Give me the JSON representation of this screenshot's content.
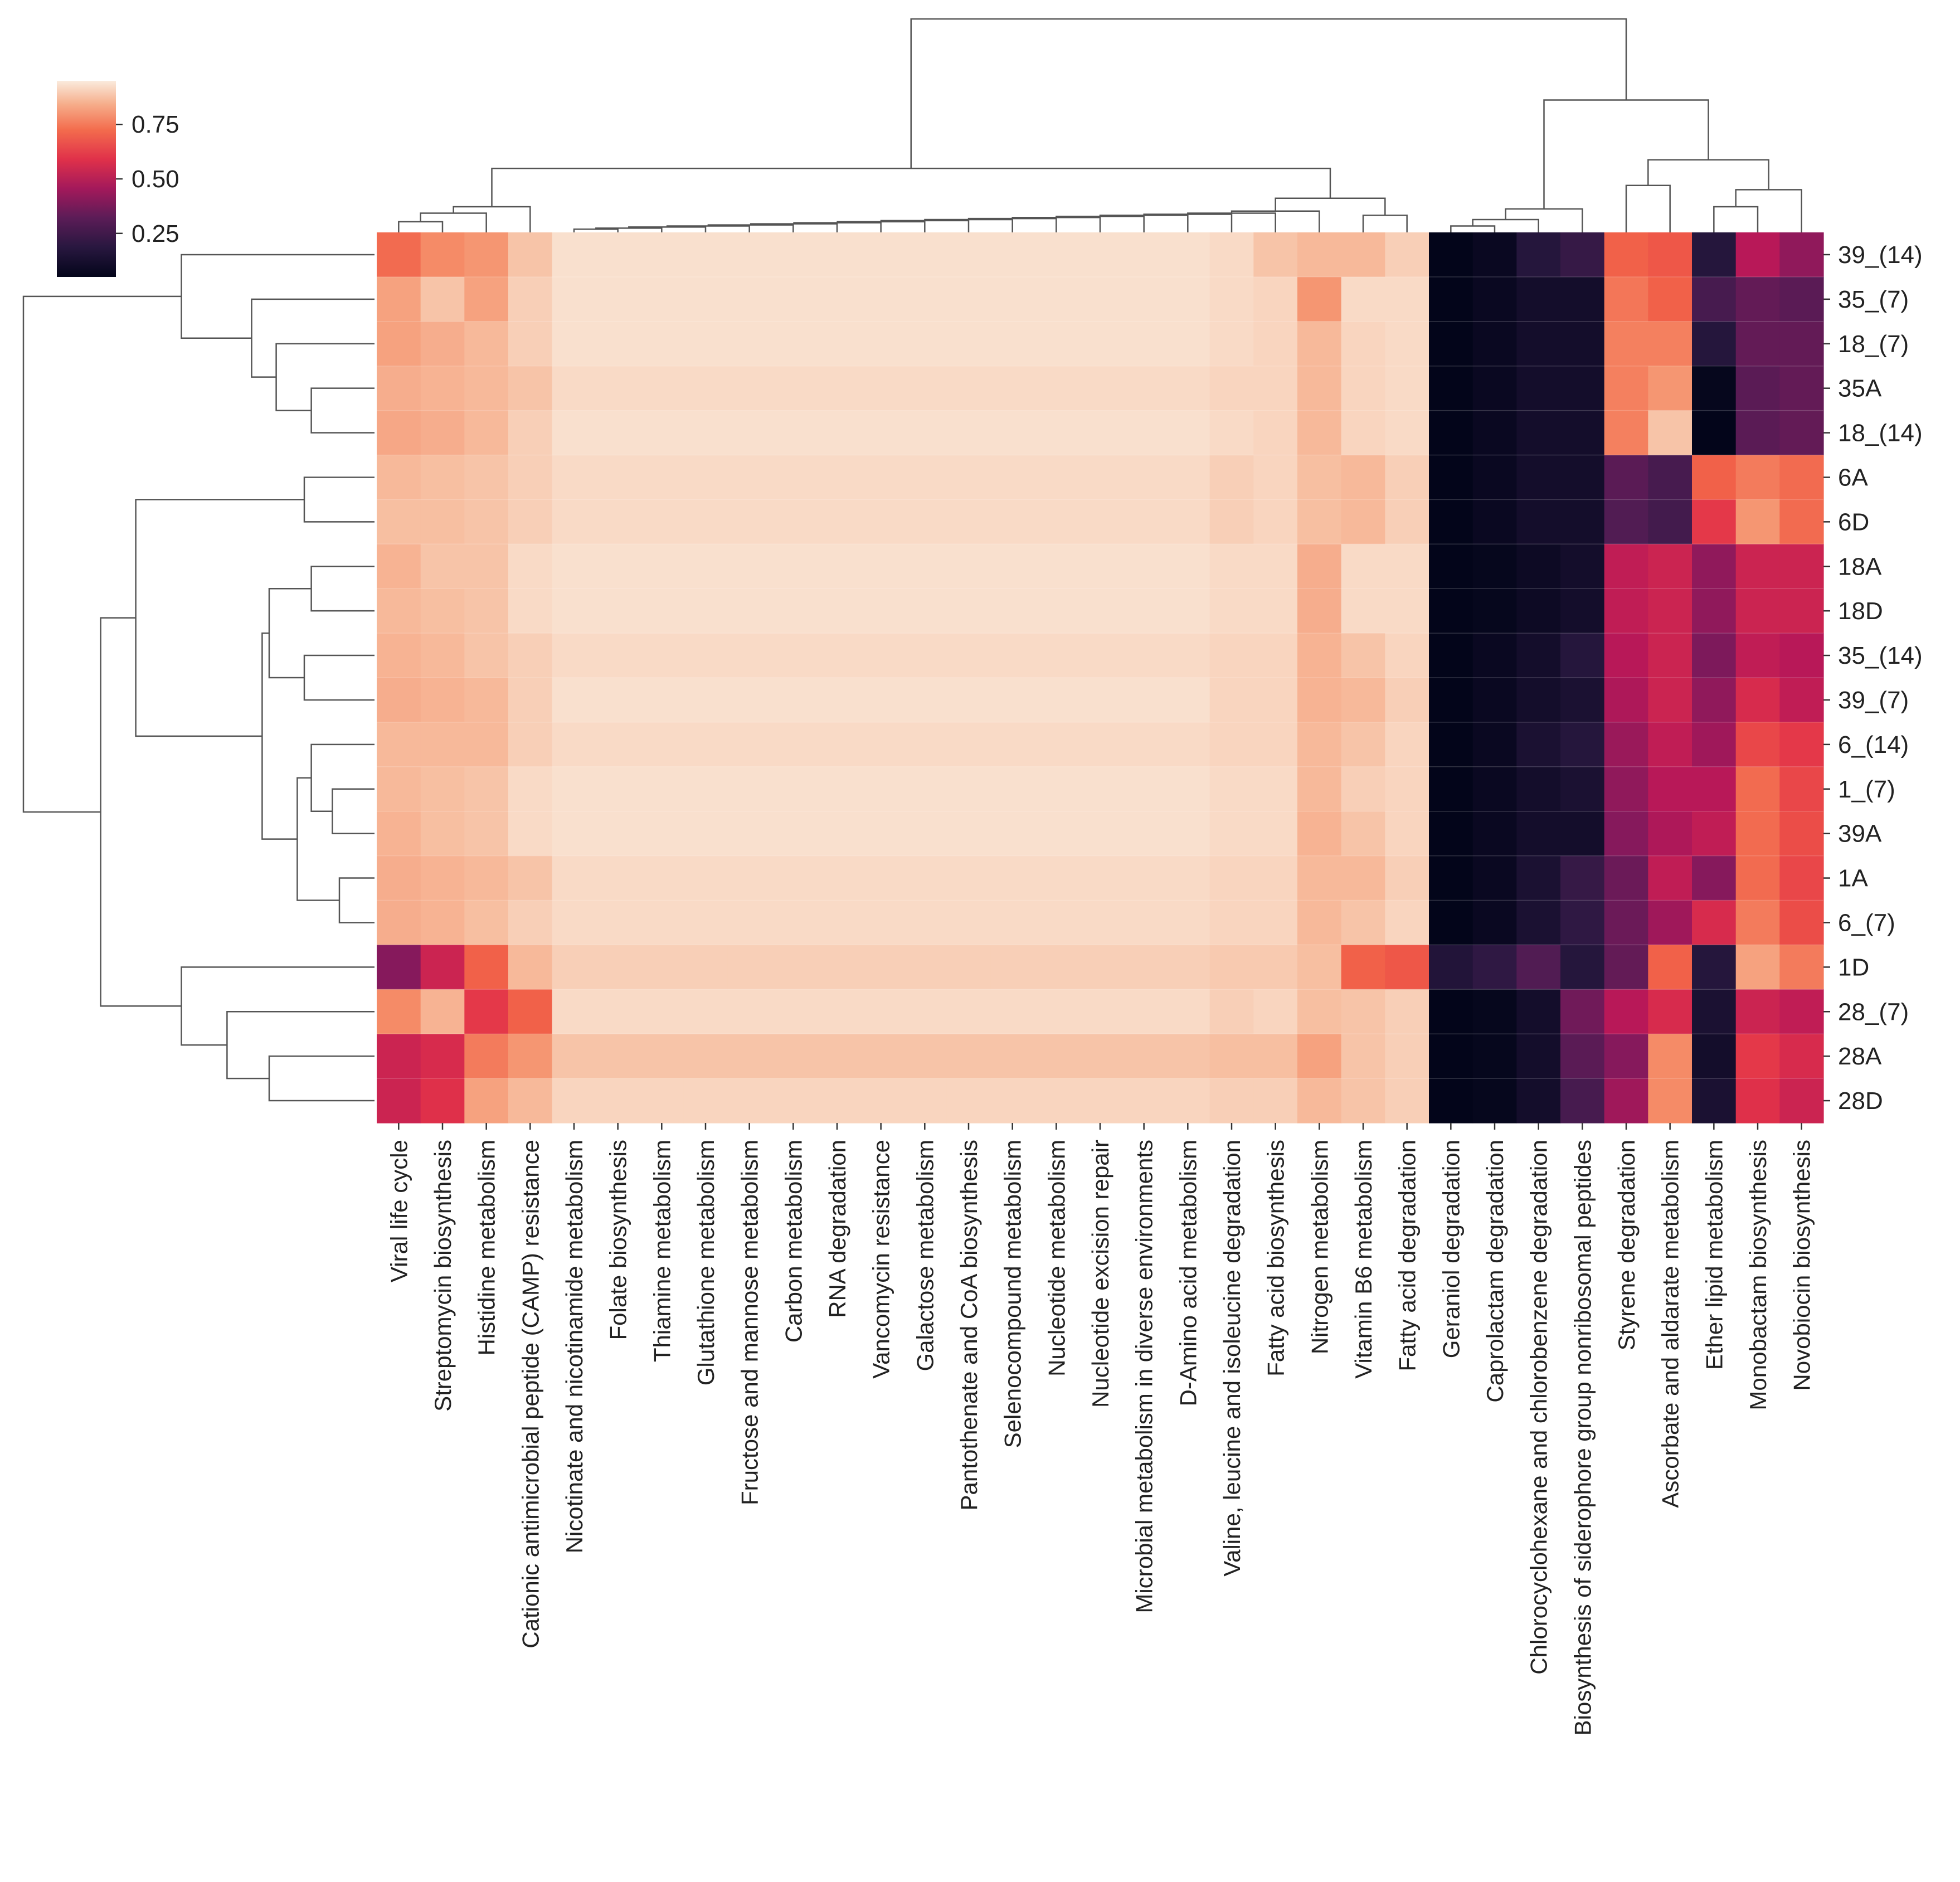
{
  "chart_data": {
    "type": "heatmap",
    "title": "",
    "xlabel": "",
    "ylabel": "",
    "colormap": "rocket",
    "colorbar": {
      "range": [
        0.05,
        0.95
      ],
      "ticks": [
        0.25,
        0.5,
        0.75
      ],
      "tick_labels": [
        "0.25",
        "0.50",
        "0.75"
      ]
    },
    "rows": [
      "39_(14)",
      "35_(7)",
      "18_(7)",
      "35A",
      "18_(14)",
      "6A",
      "6D",
      "18A",
      "18D",
      "35_(14)",
      "39_(7)",
      "6_(14)",
      "1_(7)",
      "39A",
      "1A",
      "6_(7)",
      "1D",
      "28_(7)",
      "28A",
      "28D"
    ],
    "column_groups": [
      {
        "name": "Viral life cycle",
        "labeled": true,
        "values": [
          0.72,
          0.82,
          0.82,
          0.84,
          0.83,
          0.86,
          0.87,
          0.85,
          0.86,
          0.85,
          0.84,
          0.86,
          0.86,
          0.85,
          0.84,
          0.84,
          0.4,
          0.78,
          0.55,
          0.55
        ]
      },
      {
        "name": "Streptomycin biosynthesis",
        "labeled": true,
        "values": [
          0.78,
          0.88,
          0.84,
          0.85,
          0.84,
          0.87,
          0.87,
          0.88,
          0.87,
          0.86,
          0.85,
          0.86,
          0.87,
          0.87,
          0.85,
          0.85,
          0.55,
          0.85,
          0.58,
          0.6
        ]
      },
      {
        "name": "Histidine metabolism",
        "labeled": true,
        "values": [
          0.8,
          0.82,
          0.86,
          0.86,
          0.86,
          0.88,
          0.88,
          0.88,
          0.88,
          0.88,
          0.86,
          0.86,
          0.88,
          0.88,
          0.86,
          0.87,
          0.7,
          0.62,
          0.75,
          0.82
        ]
      },
      {
        "name": "Cationic antimicrobial peptide (CAMP) resistance",
        "labeled": true,
        "values": [
          0.88,
          0.9,
          0.9,
          0.88,
          0.9,
          0.9,
          0.9,
          0.92,
          0.92,
          0.9,
          0.9,
          0.9,
          0.92,
          0.92,
          0.88,
          0.9,
          0.86,
          0.7,
          0.8,
          0.86
        ]
      },
      {
        "name": "Nicotinate and nicotinamide metabolism",
        "labeled": true,
        "values": [
          0.93,
          0.93,
          0.93,
          0.92,
          0.93,
          0.92,
          0.92,
          0.93,
          0.93,
          0.92,
          0.93,
          0.92,
          0.93,
          0.93,
          0.92,
          0.92,
          0.9,
          0.92,
          0.88,
          0.91
        ]
      },
      {
        "name": "Folate biosynthesis",
        "labeled": true,
        "values": [
          0.93,
          0.93,
          0.93,
          0.92,
          0.93,
          0.92,
          0.92,
          0.93,
          0.93,
          0.92,
          0.93,
          0.92,
          0.93,
          0.93,
          0.92,
          0.92,
          0.9,
          0.92,
          0.88,
          0.91
        ]
      },
      {
        "name": "Thiamine metabolism",
        "labeled": true,
        "values": [
          0.93,
          0.93,
          0.93,
          0.92,
          0.93,
          0.92,
          0.92,
          0.93,
          0.93,
          0.92,
          0.93,
          0.92,
          0.93,
          0.93,
          0.92,
          0.92,
          0.9,
          0.92,
          0.88,
          0.91
        ]
      },
      {
        "name": "Glutathione metabolism",
        "labeled": true,
        "values": [
          0.93,
          0.93,
          0.93,
          0.92,
          0.93,
          0.92,
          0.92,
          0.93,
          0.93,
          0.92,
          0.93,
          0.92,
          0.93,
          0.93,
          0.92,
          0.92,
          0.9,
          0.92,
          0.88,
          0.91
        ]
      },
      {
        "name": "Fructose and mannose metabolism",
        "labeled": true,
        "values": [
          0.93,
          0.93,
          0.93,
          0.92,
          0.93,
          0.92,
          0.92,
          0.93,
          0.93,
          0.92,
          0.93,
          0.92,
          0.93,
          0.93,
          0.92,
          0.92,
          0.9,
          0.92,
          0.88,
          0.91
        ]
      },
      {
        "name": "Carbon metabolism",
        "labeled": true,
        "values": [
          0.93,
          0.93,
          0.93,
          0.92,
          0.93,
          0.92,
          0.92,
          0.93,
          0.93,
          0.92,
          0.93,
          0.92,
          0.93,
          0.93,
          0.92,
          0.92,
          0.9,
          0.92,
          0.88,
          0.91
        ]
      },
      {
        "name": "RNA degradation",
        "labeled": true,
        "values": [
          0.93,
          0.93,
          0.93,
          0.92,
          0.93,
          0.92,
          0.92,
          0.93,
          0.93,
          0.92,
          0.93,
          0.92,
          0.93,
          0.93,
          0.92,
          0.92,
          0.9,
          0.92,
          0.88,
          0.91
        ]
      },
      {
        "name": "Vancomycin resistance",
        "labeled": true,
        "values": [
          0.93,
          0.93,
          0.93,
          0.92,
          0.93,
          0.92,
          0.92,
          0.93,
          0.93,
          0.92,
          0.93,
          0.92,
          0.93,
          0.93,
          0.92,
          0.92,
          0.9,
          0.92,
          0.88,
          0.91
        ]
      },
      {
        "name": "Galactose metabolism",
        "labeled": true,
        "values": [
          0.93,
          0.93,
          0.93,
          0.92,
          0.93,
          0.92,
          0.92,
          0.93,
          0.93,
          0.92,
          0.93,
          0.92,
          0.93,
          0.93,
          0.92,
          0.92,
          0.9,
          0.92,
          0.88,
          0.91
        ]
      },
      {
        "name": "Pantothenate and CoA biosynthesis",
        "labeled": true,
        "values": [
          0.93,
          0.93,
          0.93,
          0.92,
          0.93,
          0.92,
          0.92,
          0.93,
          0.93,
          0.92,
          0.93,
          0.92,
          0.93,
          0.93,
          0.92,
          0.92,
          0.9,
          0.92,
          0.88,
          0.91
        ]
      },
      {
        "name": "Selenocompound metabolism",
        "labeled": true,
        "values": [
          0.93,
          0.93,
          0.93,
          0.92,
          0.93,
          0.92,
          0.92,
          0.93,
          0.93,
          0.92,
          0.93,
          0.92,
          0.93,
          0.93,
          0.92,
          0.92,
          0.9,
          0.92,
          0.88,
          0.91
        ]
      },
      {
        "name": "Nucleotide metabolism",
        "labeled": true,
        "values": [
          0.93,
          0.93,
          0.93,
          0.92,
          0.93,
          0.92,
          0.92,
          0.93,
          0.93,
          0.92,
          0.93,
          0.92,
          0.93,
          0.93,
          0.92,
          0.92,
          0.9,
          0.92,
          0.88,
          0.91
        ]
      },
      {
        "name": "Nucleotide excision repair",
        "labeled": true,
        "values": [
          0.93,
          0.93,
          0.93,
          0.92,
          0.93,
          0.92,
          0.92,
          0.93,
          0.93,
          0.92,
          0.93,
          0.92,
          0.93,
          0.93,
          0.92,
          0.92,
          0.9,
          0.92,
          0.88,
          0.91
        ]
      },
      {
        "name": "Microbial metabolism in diverse environments",
        "labeled": true,
        "values": [
          0.93,
          0.93,
          0.93,
          0.92,
          0.93,
          0.92,
          0.92,
          0.93,
          0.93,
          0.92,
          0.93,
          0.92,
          0.93,
          0.93,
          0.92,
          0.92,
          0.9,
          0.92,
          0.88,
          0.91
        ]
      },
      {
        "name": "D-Amino acid metabolism",
        "labeled": true,
        "values": [
          0.93,
          0.93,
          0.93,
          0.92,
          0.93,
          0.92,
          0.92,
          0.93,
          0.93,
          0.92,
          0.93,
          0.92,
          0.93,
          0.93,
          0.92,
          0.92,
          0.9,
          0.92,
          0.88,
          0.91
        ]
      },
      {
        "name": "Valine, leucine and isoleucine degradation",
        "labeled": true,
        "values": [
          0.92,
          0.92,
          0.92,
          0.91,
          0.92,
          0.9,
          0.9,
          0.92,
          0.92,
          0.91,
          0.91,
          0.91,
          0.92,
          0.92,
          0.91,
          0.91,
          0.89,
          0.9,
          0.87,
          0.9
        ]
      },
      {
        "name": "Fatty acid biosynthesis",
        "labeled": true,
        "values": [
          0.88,
          0.91,
          0.91,
          0.91,
          0.91,
          0.91,
          0.91,
          0.92,
          0.92,
          0.91,
          0.91,
          0.91,
          0.92,
          0.92,
          0.91,
          0.91,
          0.89,
          0.91,
          0.87,
          0.9
        ]
      },
      {
        "name": "Nitrogen metabolism",
        "labeled": true,
        "values": [
          0.86,
          0.8,
          0.86,
          0.86,
          0.86,
          0.87,
          0.87,
          0.84,
          0.84,
          0.85,
          0.85,
          0.86,
          0.86,
          0.85,
          0.86,
          0.86,
          0.87,
          0.87,
          0.82,
          0.86
        ]
      },
      {
        "name": "Vitamin B6 metabolism",
        "labeled": true,
        "values": [
          0.86,
          0.92,
          0.91,
          0.91,
          0.91,
          0.86,
          0.86,
          0.92,
          0.92,
          0.88,
          0.86,
          0.88,
          0.9,
          0.88,
          0.86,
          0.88,
          0.7,
          0.88,
          0.88,
          0.88
        ]
      },
      {
        "name": "Fatty acid degradation",
        "labeled": true,
        "values": [
          0.9,
          0.92,
          0.92,
          0.92,
          0.92,
          0.9,
          0.9,
          0.92,
          0.92,
          0.91,
          0.9,
          0.91,
          0.91,
          0.91,
          0.9,
          0.91,
          0.68,
          0.9,
          0.9,
          0.9
        ]
      },
      {
        "name": "Geraniol degradation",
        "labeled": true,
        "values": [
          0.05,
          0.05,
          0.05,
          0.05,
          0.05,
          0.05,
          0.05,
          0.05,
          0.05,
          0.05,
          0.05,
          0.05,
          0.05,
          0.05,
          0.05,
          0.05,
          0.14,
          0.05,
          0.05,
          0.05
        ]
      },
      {
        "name": "Caprolactam degradation",
        "labeled": true,
        "values": [
          0.07,
          0.07,
          0.07,
          0.07,
          0.07,
          0.07,
          0.07,
          0.06,
          0.06,
          0.07,
          0.07,
          0.07,
          0.07,
          0.07,
          0.07,
          0.07,
          0.18,
          0.06,
          0.06,
          0.06
        ]
      },
      {
        "name": "Chlorocyclohexane and chlorobenzene degradation",
        "labeled": true,
        "values": [
          0.15,
          0.1,
          0.1,
          0.1,
          0.1,
          0.1,
          0.1,
          0.08,
          0.08,
          0.1,
          0.1,
          0.12,
          0.1,
          0.1,
          0.12,
          0.12,
          0.28,
          0.1,
          0.1,
          0.1
        ]
      },
      {
        "name": "Biosynthesis of siderophore group nonribosomal peptides",
        "labeled": true,
        "values": [
          0.2,
          0.1,
          0.1,
          0.1,
          0.1,
          0.1,
          0.1,
          0.1,
          0.1,
          0.15,
          0.12,
          0.15,
          0.12,
          0.1,
          0.2,
          0.18,
          0.15,
          0.35,
          0.3,
          0.25
        ]
      },
      {
        "name": "Styrene degradation",
        "labeled": true,
        "values": [
          0.7,
          0.74,
          0.76,
          0.76,
          0.76,
          0.3,
          0.28,
          0.52,
          0.52,
          0.5,
          0.48,
          0.44,
          0.42,
          0.4,
          0.34,
          0.34,
          0.32,
          0.5,
          0.4,
          0.45
        ]
      },
      {
        "name": "Ascorbate and aldarate metabolism",
        "labeled": true,
        "values": [
          0.68,
          0.7,
          0.76,
          0.8,
          0.88,
          0.25,
          0.24,
          0.55,
          0.55,
          0.55,
          0.55,
          0.52,
          0.5,
          0.48,
          0.52,
          0.45,
          0.7,
          0.58,
          0.78,
          0.78
        ]
      },
      {
        "name": "Ether lipid metabolism",
        "labeled": true,
        "values": [
          0.15,
          0.25,
          0.15,
          0.06,
          0.05,
          0.7,
          0.62,
          0.42,
          0.42,
          0.38,
          0.42,
          0.45,
          0.5,
          0.52,
          0.4,
          0.58,
          0.15,
          0.12,
          0.1,
          0.12
        ]
      },
      {
        "name": "Monobactam biosynthesis",
        "labeled": true,
        "values": [
          0.5,
          0.32,
          0.32,
          0.3,
          0.3,
          0.75,
          0.8,
          0.55,
          0.55,
          0.52,
          0.58,
          0.65,
          0.72,
          0.72,
          0.72,
          0.75,
          0.82,
          0.55,
          0.62,
          0.6
        ]
      },
      {
        "name": "Novobiocin biosynthesis",
        "labeled": true,
        "values": [
          0.42,
          0.3,
          0.32,
          0.32,
          0.32,
          0.72,
          0.72,
          0.55,
          0.55,
          0.5,
          0.52,
          0.62,
          0.65,
          0.66,
          0.65,
          0.66,
          0.75,
          0.52,
          0.58,
          0.55
        ]
      }
    ]
  }
}
